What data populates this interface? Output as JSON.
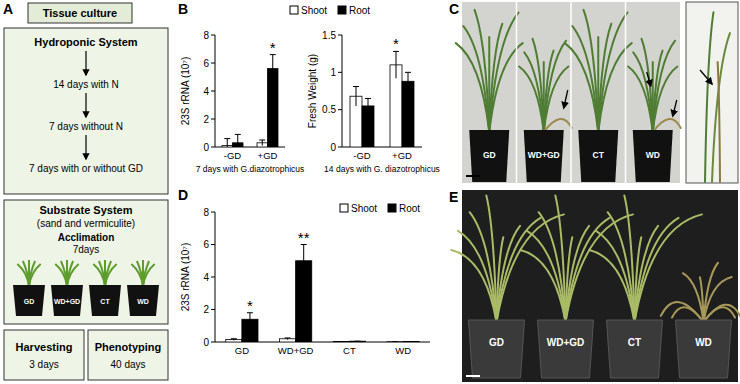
{
  "panel_labels": [
    "A",
    "B",
    "C",
    "D",
    "E"
  ],
  "panel_a": {
    "title": "Tissue culture",
    "hydroponic": {
      "title": "Hydroponic System",
      "steps": [
        "14 days with N",
        "7 days without N",
        "7 days with or without GD"
      ]
    },
    "substrate": {
      "title": "Substrate System",
      "subtitle": "(sand and vermiculite)",
      "acclimation": "Acclimation",
      "acclimation_days": "7days",
      "pots": [
        "GD",
        "WD+GD",
        "CT",
        "WD"
      ]
    },
    "harvesting": {
      "label": "Harvesting",
      "days": "3 days"
    },
    "phenotyping": {
      "label": "Phenotyping",
      "days": "40 days"
    }
  },
  "chart_data": [
    {
      "type": "bar",
      "ylabel": "23S rRNA (10⁷)",
      "xlabel": "7 days with G.diazotrophicus",
      "categories": [
        "-GD",
        "+GD"
      ],
      "series": [
        {
          "name": "Shoot",
          "color": "#ffffff",
          "values": [
            0.1,
            0.3
          ],
          "errors": [
            0.5,
            0.2
          ]
        },
        {
          "name": "Root",
          "color": "#000000",
          "values": [
            0.3,
            5.6
          ],
          "errors": [
            0.6,
            1.0
          ]
        }
      ],
      "ylim": [
        0,
        8
      ],
      "yticks": [
        0,
        2,
        4,
        6,
        8
      ],
      "legend": "top",
      "annotations": [
        {
          "text": "*",
          "category": 1,
          "series": 1
        }
      ]
    },
    {
      "type": "bar",
      "ylabel": "Fresh Weight (g)",
      "xlabel": "14 days with G. diazotrophicus",
      "categories": [
        "-GD",
        "+GD"
      ],
      "series": [
        {
          "name": "Shoot",
          "color": "#ffffff",
          "values": [
            0.68,
            1.1
          ],
          "errors": [
            0.13,
            0.18
          ]
        },
        {
          "name": "Root",
          "color": "#000000",
          "values": [
            0.55,
            0.88
          ],
          "errors": [
            0.1,
            0.12
          ]
        }
      ],
      "ylim": [
        0,
        1.5
      ],
      "yticks": [
        0,
        0.5,
        1,
        1.5
      ],
      "annotations": [
        {
          "text": "*",
          "category": 1,
          "series": 0
        }
      ]
    },
    {
      "type": "bar",
      "ylabel": "23S rRNA (10⁷)",
      "categories": [
        "GD",
        "WD+GD",
        "CT",
        "WD"
      ],
      "series": [
        {
          "name": "Shoot",
          "color": "#ffffff",
          "values": [
            0.15,
            0.2,
            0.03,
            0.02
          ],
          "errors": [
            0.05,
            0.05,
            0,
            0
          ]
        },
        {
          "name": "Root",
          "color": "#000000",
          "values": [
            1.4,
            5.0,
            0.05,
            0.03
          ],
          "errors": [
            0.4,
            1.0,
            0,
            0
          ]
        }
      ],
      "ylim": [
        0,
        8
      ],
      "yticks": [
        0,
        2,
        4,
        6,
        8
      ],
      "legend": "top-right",
      "annotations": [
        {
          "text": "*",
          "category": 0,
          "series": 1
        },
        {
          "text": "**",
          "category": 1,
          "series": 1
        }
      ]
    }
  ],
  "panel_c": {
    "pots": [
      "GD",
      "WD+GD",
      "CT",
      "WD"
    ]
  },
  "panel_e": {
    "pots": [
      "GD",
      "WD+GD",
      "CT",
      "WD"
    ]
  }
}
